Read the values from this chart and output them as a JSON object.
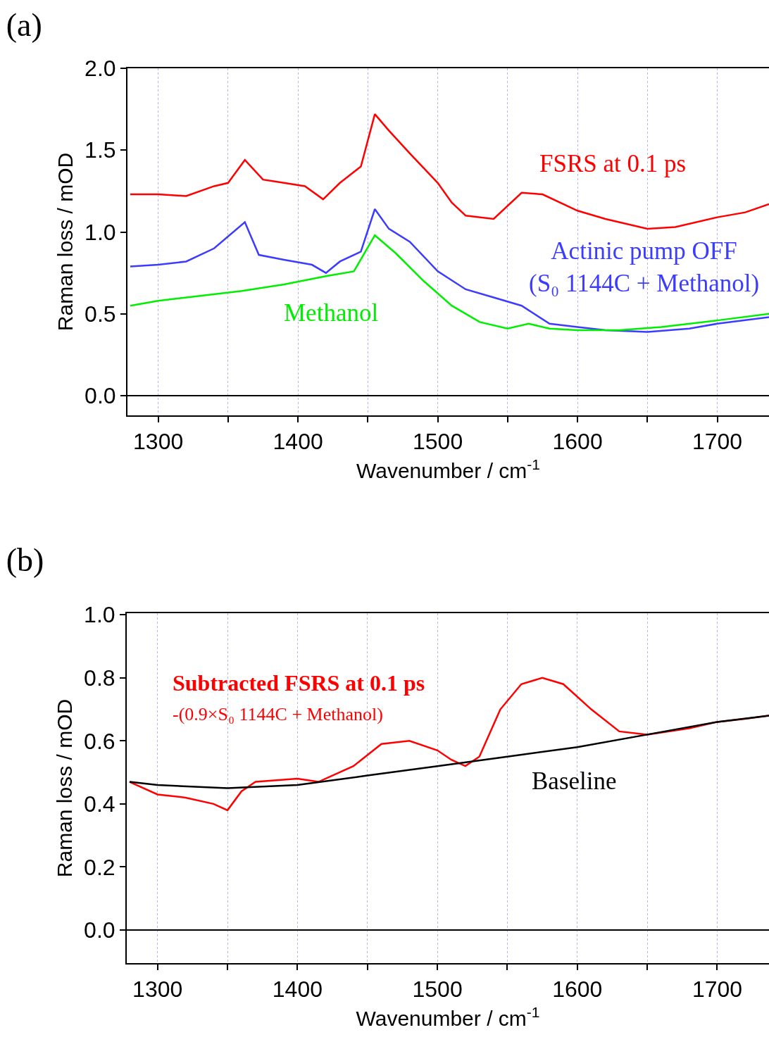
{
  "chart_data": [
    {
      "type": "line",
      "title": "(a)",
      "xlabel": "Wavenumber / cm$^{-1}$",
      "ylabel": "Raman loss / mOD",
      "xlim": [
        1278,
        1737
      ],
      "ylim": [
        -0.12,
        2.0
      ],
      "xticks": [
        1300,
        {
          "value": 1350,
          "label": null
        },
        1400,
        {
          "value": 1450,
          "label": null
        },
        1500,
        {
          "value": 1550,
          "label": null
        },
        1600,
        {
          "value": 1650,
          "label": null
        },
        1700
      ],
      "yticks": [
        {
          "value": 0,
          "label": "0.0"
        },
        0.5,
        {
          "value": 1,
          "label": "1.0"
        },
        1.5,
        {
          "value": 2,
          "label": "2.0"
        }
      ],
      "grid": "x",
      "legend": false,
      "marker": "none",
      "line_style": "solid",
      "ref_lines": [
        {
          "axis": "y",
          "value": 0,
          "color": "#000000"
        }
      ],
      "series": [
        {
          "name": "FSRS at 0.1 ps",
          "color": "#ff0000",
          "x": [
            1280,
            1300,
            1320,
            1340,
            1350,
            1362,
            1375,
            1390,
            1405,
            1418,
            1430,
            1445,
            1455,
            1465,
            1480,
            1500,
            1510,
            1520,
            1540,
            1560,
            1575,
            1600,
            1620,
            1650,
            1670,
            1700,
            1720,
            1737
          ],
          "values": [
            1.23,
            1.23,
            1.22,
            1.28,
            1.3,
            1.44,
            1.32,
            1.3,
            1.28,
            1.2,
            1.3,
            1.4,
            1.72,
            1.62,
            1.48,
            1.3,
            1.18,
            1.1,
            1.08,
            1.24,
            1.23,
            1.13,
            1.08,
            1.02,
            1.03,
            1.09,
            1.12,
            1.17
          ]
        },
        {
          "name": "Actinic pump OFF\n(S₀ 1144C + Methanol)",
          "color": "#3c3cff",
          "x": [
            1280,
            1300,
            1320,
            1340,
            1362,
            1372,
            1390,
            1410,
            1420,
            1430,
            1445,
            1455,
            1465,
            1480,
            1500,
            1520,
            1540,
            1560,
            1580,
            1600,
            1620,
            1650,
            1680,
            1700,
            1737
          ],
          "values": [
            0.79,
            0.8,
            0.82,
            0.9,
            1.06,
            0.86,
            0.83,
            0.8,
            0.75,
            0.82,
            0.88,
            1.14,
            1.02,
            0.94,
            0.76,
            0.65,
            0.6,
            0.55,
            0.44,
            0.42,
            0.4,
            0.39,
            0.41,
            0.44,
            0.48
          ]
        },
        {
          "name": "Methanol",
          "color": "#00ee00",
          "x": [
            1280,
            1300,
            1330,
            1360,
            1390,
            1420,
            1440,
            1455,
            1470,
            1490,
            1510,
            1530,
            1550,
            1565,
            1580,
            1600,
            1630,
            1660,
            1700,
            1737
          ],
          "values": [
            0.55,
            0.58,
            0.61,
            0.64,
            0.68,
            0.73,
            0.76,
            0.98,
            0.87,
            0.7,
            0.55,
            0.45,
            0.41,
            0.44,
            0.41,
            0.4,
            0.4,
            0.42,
            0.46,
            0.5
          ]
        }
      ]
    },
    {
      "type": "line",
      "title": "(b)",
      "xlabel": "Wavenumber / cm$^{-1}$",
      "ylabel": "Raman loss / mOD",
      "xlim": [
        1278,
        1737
      ],
      "ylim": [
        -0.105,
        1.005
      ],
      "xticks": [
        1300,
        {
          "value": 1350,
          "label": null
        },
        1400,
        {
          "value": 1450,
          "label": null
        },
        1500,
        {
          "value": 1550,
          "label": null
        },
        1600,
        {
          "value": 1650,
          "label": null
        },
        1700
      ],
      "yticks": [
        {
          "value": 0,
          "label": "0.0"
        },
        0.2,
        0.4,
        0.6,
        0.8,
        {
          "value": 1,
          "label": "1.0"
        }
      ],
      "grid": "x",
      "legend": false,
      "marker": "none",
      "line_style": "solid",
      "ref_lines": [
        {
          "axis": "y",
          "value": 0,
          "color": "#000000"
        }
      ],
      "series": [
        {
          "name": "Subtracted FSRS at 0.1 ps\n-(0.9×S₀ 1144C + Methanol)",
          "color": "#ff0000",
          "x": [
            1280,
            1300,
            1320,
            1340,
            1350,
            1360,
            1370,
            1400,
            1415,
            1440,
            1460,
            1480,
            1500,
            1510,
            1520,
            1530,
            1545,
            1560,
            1575,
            1590,
            1610,
            1630,
            1650,
            1680,
            1700,
            1720,
            1737
          ],
          "values": [
            0.47,
            0.43,
            0.42,
            0.4,
            0.38,
            0.44,
            0.47,
            0.48,
            0.47,
            0.52,
            0.59,
            0.6,
            0.57,
            0.54,
            0.52,
            0.55,
            0.7,
            0.78,
            0.8,
            0.78,
            0.7,
            0.63,
            0.62,
            0.64,
            0.66,
            0.67,
            0.68
          ]
        },
        {
          "name": "Baseline",
          "color": "#000000",
          "x": [
            1280,
            1300,
            1350,
            1400,
            1450,
            1500,
            1550,
            1600,
            1650,
            1700,
            1737
          ],
          "values": [
            0.47,
            0.46,
            0.45,
            0.46,
            0.49,
            0.52,
            0.55,
            0.58,
            0.62,
            0.66,
            0.68
          ]
        }
      ]
    }
  ]
}
